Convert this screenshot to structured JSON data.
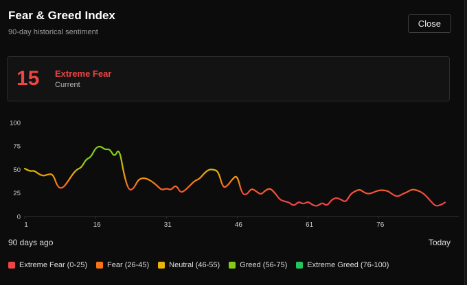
{
  "window": {
    "title": "Fear & Greed Index",
    "subtitle": "90-day historical sentiment",
    "close_label": "Close"
  },
  "current": {
    "value": "15",
    "label": "Extreme Fear",
    "sublabel": "Current",
    "color": "#ef4444"
  },
  "footer": {
    "left": "90 days ago",
    "right": "Today"
  },
  "legend": [
    {
      "label": "Extreme Fear (0-25)",
      "color": "#ef4444"
    },
    {
      "label": "Fear (26-45)",
      "color": "#f97316"
    },
    {
      "label": "Neutral (46-55)",
      "color": "#eab308"
    },
    {
      "label": "Greed (56-75)",
      "color": "#84cc16"
    },
    {
      "label": "Extreme Greed (76-100)",
      "color": "#22c55e"
    }
  ],
  "chart_data": {
    "type": "line",
    "x_start": 1,
    "x_end": 90,
    "values": [
      51,
      48,
      49,
      45,
      43,
      45,
      45,
      31,
      30,
      36,
      44,
      50,
      52,
      61,
      63,
      73,
      75,
      71,
      72,
      63,
      73,
      45,
      28,
      29,
      39,
      41,
      40,
      37,
      33,
      28,
      30,
      28,
      34,
      25,
      28,
      33,
      38,
      40,
      46,
      50,
      50,
      48,
      30,
      33,
      40,
      44,
      24,
      23,
      30,
      27,
      23,
      28,
      30,
      25,
      18,
      16,
      15,
      11,
      16,
      13,
      16,
      12,
      11,
      15,
      11,
      18,
      20,
      18,
      15,
      24,
      27,
      29,
      25,
      24,
      26,
      28,
      28,
      27,
      23,
      21,
      24,
      26,
      29,
      28,
      26,
      22,
      16,
      11,
      12,
      15
    ],
    "x_ticks": [
      1,
      16,
      31,
      46,
      61,
      76
    ],
    "y_ticks": [
      0,
      25,
      50,
      75,
      100
    ],
    "ylim": [
      0,
      100
    ],
    "grid": false,
    "legend_position": "bottom",
    "axis_color": "#333333",
    "tick_label_color": "#cfcfcf",
    "color_stops": [
      [
        0,
        "#ef4444"
      ],
      [
        22,
        "#ef4444"
      ],
      [
        34,
        "#f97316"
      ],
      [
        48,
        "#eab308"
      ],
      [
        58,
        "#84cc16"
      ],
      [
        76,
        "#84cc16"
      ],
      [
        90,
        "#22c55e"
      ],
      [
        100,
        "#22c55e"
      ]
    ]
  }
}
